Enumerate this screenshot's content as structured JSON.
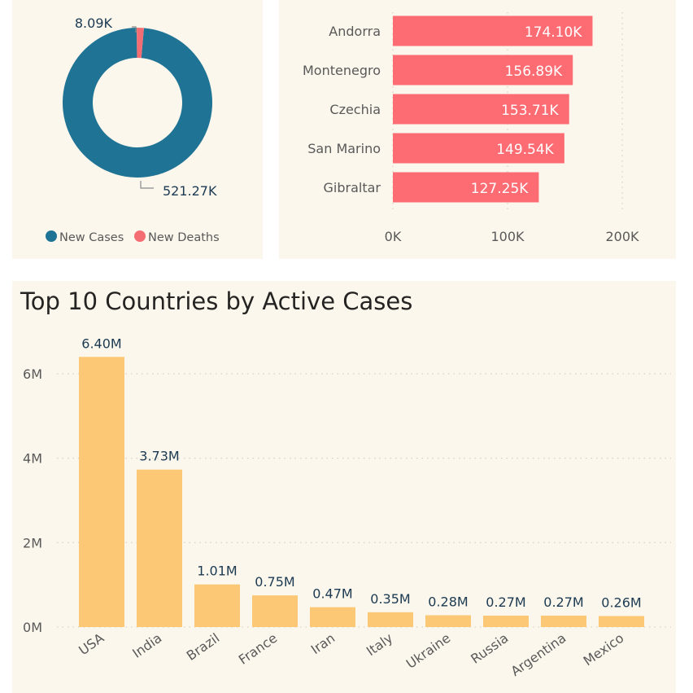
{
  "colors": {
    "panel_bg": "#fcf7ec",
    "new_cases": "#1f7395",
    "new_deaths": "#f46d73",
    "hbar": "#fd6b73",
    "vbar": "#fdc875",
    "label": "#1b3a52",
    "axis": "#595959",
    "grid": "#d9d3c4"
  },
  "chart_data": [
    {
      "type": "pie",
      "variant": "donut",
      "labels": [
        "New Cases",
        "New Deaths"
      ],
      "values": [
        521270,
        8090
      ],
      "data_labels": [
        "521.27K",
        "8.09K"
      ],
      "legend": {
        "position": "bottom",
        "entries": [
          "New Cases",
          "New Deaths"
        ]
      }
    },
    {
      "type": "bar",
      "orientation": "horizontal",
      "categories": [
        "Andorra",
        "Montenegro",
        "Czechia",
        "San Marino",
        "Gibraltar"
      ],
      "values": [
        174100,
        156890,
        153710,
        149540,
        127250
      ],
      "data_labels": [
        "174.10K",
        "156.89K",
        "153.71K",
        "149.54K",
        "127.25K"
      ],
      "xlim": [
        0,
        200000
      ],
      "x_ticks": [
        0,
        100000,
        200000
      ],
      "x_tick_labels": [
        "0K",
        "100K",
        "200K"
      ],
      "grid": true
    },
    {
      "type": "bar",
      "title": "Top 10 Countries by Active Cases",
      "categories": [
        "USA",
        "India",
        "Brazil",
        "France",
        "Iran",
        "Italy",
        "Ukraine",
        "Russia",
        "Argentina",
        "Mexico"
      ],
      "values": [
        6400000,
        3730000,
        1010000,
        750000,
        470000,
        350000,
        280000,
        270000,
        270000,
        260000
      ],
      "data_labels": [
        "6.40M",
        "3.73M",
        "1.01M",
        "0.75M",
        "0.47M",
        "0.35M",
        "0.28M",
        "0.27M",
        "0.27M",
        "0.26M"
      ],
      "ylim": [
        0,
        6000000
      ],
      "y_ticks": [
        0,
        2000000,
        4000000,
        6000000
      ],
      "y_tick_labels": [
        "0M",
        "2M",
        "4M",
        "6M"
      ],
      "grid": true
    }
  ]
}
